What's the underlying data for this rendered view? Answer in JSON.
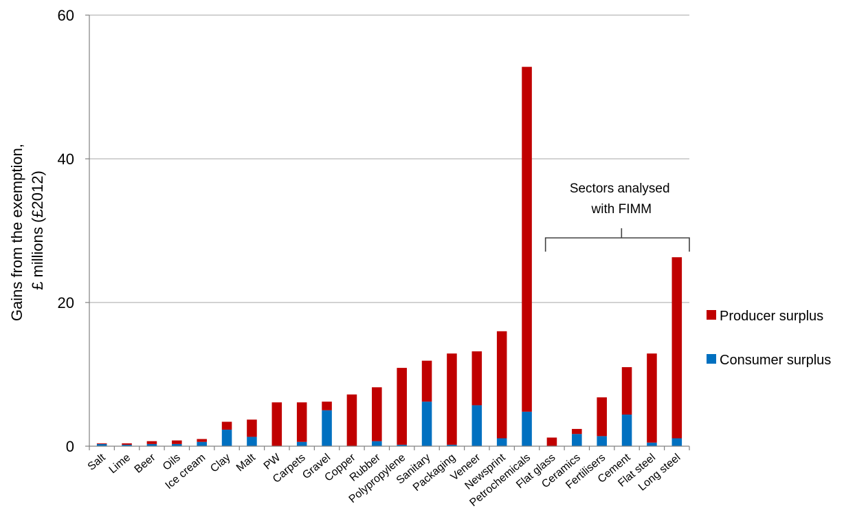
{
  "chart_data": {
    "type": "bar",
    "stacked": true,
    "title": "",
    "xlabel": "",
    "ylabel_lines": [
      "Gains from the exemption,",
      "£ millions (£2012)"
    ],
    "ylim": [
      0,
      60
    ],
    "yticks": [
      0,
      20,
      40,
      60
    ],
    "ytick_labels": [
      "0",
      "20",
      "40",
      "60"
    ],
    "grid": true,
    "legend_position": "right",
    "categories": [
      "Salt",
      "Lime",
      "Beer",
      "Oils",
      "Ice cream",
      "Clay",
      "Malt",
      "PW",
      "Carpets",
      "Gravel",
      "Copper",
      "Rubber",
      "Polypropylene",
      "Sanitary",
      "Packaging",
      "Veneer",
      "Newsprint",
      "Petrochemicals",
      "Flat glass",
      "Ceramics",
      "Fertilisers",
      "Cement",
      "Flat steel",
      "Long steel"
    ],
    "series": [
      {
        "name": "Consumer surplus",
        "color": "#0070c0",
        "values": [
          0.3,
          0.2,
          0.3,
          0.3,
          0.6,
          2.3,
          1.3,
          0.0,
          0.6,
          5.0,
          0.0,
          0.7,
          0.2,
          6.2,
          0.2,
          5.7,
          1.1,
          4.8,
          0.0,
          1.7,
          1.4,
          4.4,
          0.5,
          1.1
        ]
      },
      {
        "name": "Producer surplus",
        "color": "#c00000",
        "values": [
          0.1,
          0.2,
          0.4,
          0.5,
          0.4,
          1.1,
          2.4,
          6.1,
          5.5,
          1.2,
          7.2,
          7.5,
          10.7,
          5.7,
          12.7,
          7.5,
          14.9,
          48.0,
          1.2,
          0.7,
          5.4,
          6.6,
          12.4,
          25.2
        ]
      }
    ],
    "annotation": {
      "lines": [
        "Sectors analysed",
        "with FIMM"
      ],
      "bracket_from": "Flat glass",
      "bracket_to": "Long steel"
    },
    "colors": {
      "gridline": "#a6a6a6",
      "axis": "#808080"
    }
  }
}
